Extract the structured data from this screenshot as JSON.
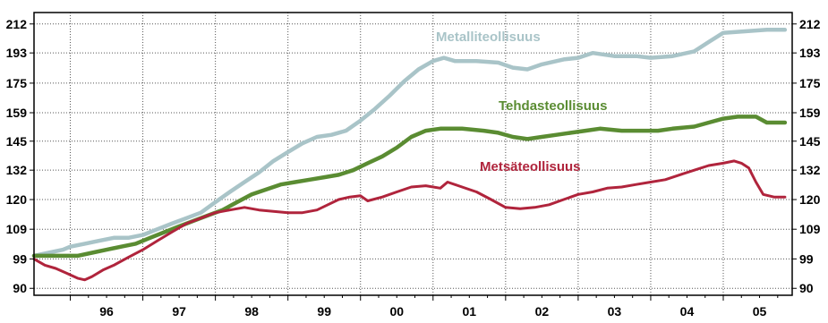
{
  "chart_data": {
    "type": "line",
    "scale": "log",
    "grid": true,
    "ylim": [
      88,
      220
    ],
    "y_ticks": [
      90,
      99,
      109,
      120,
      132,
      145,
      159,
      175,
      193,
      212
    ],
    "x_ticks": [
      "96",
      "97",
      "98",
      "99",
      "00",
      "01",
      "02",
      "03",
      "04",
      "05"
    ],
    "x_start": 1995.5,
    "x_end": 2005.95,
    "series": [
      {
        "name": "Metalliteollisuus",
        "color": "#a9c4c8",
        "stroke_width": 4.5,
        "points": [
          [
            1995.5,
            100
          ],
          [
            1995.7,
            101
          ],
          [
            1995.9,
            102
          ],
          [
            1996.0,
            103
          ],
          [
            1996.2,
            104
          ],
          [
            1996.4,
            105
          ],
          [
            1996.6,
            106
          ],
          [
            1996.8,
            106
          ],
          [
            1997.0,
            107
          ],
          [
            1997.2,
            109
          ],
          [
            1997.4,
            111
          ],
          [
            1997.6,
            113
          ],
          [
            1997.8,
            115
          ],
          [
            1998.0,
            119
          ],
          [
            1998.2,
            123
          ],
          [
            1998.4,
            127
          ],
          [
            1998.6,
            131
          ],
          [
            1998.8,
            136
          ],
          [
            1999.0,
            140
          ],
          [
            1999.2,
            144
          ],
          [
            1999.4,
            147
          ],
          [
            1999.6,
            148
          ],
          [
            1999.8,
            150
          ],
          [
            2000.0,
            155
          ],
          [
            2000.2,
            161
          ],
          [
            2000.4,
            168
          ],
          [
            2000.6,
            176
          ],
          [
            2000.8,
            183
          ],
          [
            2001.0,
            188
          ],
          [
            2001.15,
            190
          ],
          [
            2001.3,
            188
          ],
          [
            2001.6,
            188
          ],
          [
            2001.9,
            187
          ],
          [
            2002.1,
            184
          ],
          [
            2002.3,
            183
          ],
          [
            2002.5,
            186
          ],
          [
            2002.8,
            189
          ],
          [
            2003.0,
            190
          ],
          [
            2003.2,
            193
          ],
          [
            2003.5,
            191
          ],
          [
            2003.8,
            191
          ],
          [
            2004.0,
            190
          ],
          [
            2004.3,
            191
          ],
          [
            2004.6,
            194
          ],
          [
            2004.8,
            200
          ],
          [
            2005.0,
            206
          ],
          [
            2005.3,
            207
          ],
          [
            2005.6,
            208
          ],
          [
            2005.85,
            208
          ]
        ]
      },
      {
        "name": "Tehdasteollisuus",
        "color": "#5a8c32",
        "stroke_width": 4.5,
        "points": [
          [
            1995.5,
            100
          ],
          [
            1995.7,
            100
          ],
          [
            1995.9,
            100
          ],
          [
            1996.1,
            100
          ],
          [
            1996.3,
            101
          ],
          [
            1996.5,
            102
          ],
          [
            1996.7,
            103
          ],
          [
            1996.9,
            104
          ],
          [
            1997.1,
            106
          ],
          [
            1997.3,
            108
          ],
          [
            1997.5,
            110
          ],
          [
            1997.7,
            112
          ],
          [
            1997.9,
            114
          ],
          [
            1998.1,
            116
          ],
          [
            1998.3,
            119
          ],
          [
            1998.5,
            122
          ],
          [
            1998.7,
            124
          ],
          [
            1998.9,
            126
          ],
          [
            1999.1,
            127
          ],
          [
            1999.3,
            128
          ],
          [
            1999.5,
            129
          ],
          [
            1999.7,
            130
          ],
          [
            1999.9,
            132
          ],
          [
            2000.1,
            135
          ],
          [
            2000.3,
            138
          ],
          [
            2000.5,
            142
          ],
          [
            2000.7,
            147
          ],
          [
            2000.9,
            150
          ],
          [
            2001.1,
            151
          ],
          [
            2001.4,
            151
          ],
          [
            2001.7,
            150
          ],
          [
            2001.9,
            149
          ],
          [
            2002.1,
            147
          ],
          [
            2002.3,
            146
          ],
          [
            2002.5,
            147
          ],
          [
            2002.7,
            148
          ],
          [
            2002.9,
            149
          ],
          [
            2003.1,
            150
          ],
          [
            2003.3,
            151
          ],
          [
            2003.6,
            150
          ],
          [
            2003.9,
            150
          ],
          [
            2004.1,
            150
          ],
          [
            2004.3,
            151
          ],
          [
            2004.6,
            152
          ],
          [
            2004.8,
            154
          ],
          [
            2005.0,
            156
          ],
          [
            2005.2,
            157
          ],
          [
            2005.45,
            157
          ],
          [
            2005.6,
            154
          ],
          [
            2005.85,
            154
          ]
        ]
      },
      {
        "name": "Metsäteollisuus",
        "color": "#b0243c",
        "stroke_width": 3,
        "points": [
          [
            1995.5,
            99
          ],
          [
            1995.65,
            97
          ],
          [
            1995.8,
            96
          ],
          [
            1995.95,
            94.5
          ],
          [
            1996.1,
            93
          ],
          [
            1996.2,
            92.5
          ],
          [
            1996.3,
            93.5
          ],
          [
            1996.45,
            95.5
          ],
          [
            1996.6,
            97
          ],
          [
            1996.8,
            99.5
          ],
          [
            1997.0,
            102
          ],
          [
            1997.2,
            105
          ],
          [
            1997.4,
            108
          ],
          [
            1997.6,
            111
          ],
          [
            1997.8,
            113
          ],
          [
            1998.0,
            115
          ],
          [
            1998.2,
            116
          ],
          [
            1998.4,
            117
          ],
          [
            1998.6,
            116
          ],
          [
            1998.8,
            115.5
          ],
          [
            1999.0,
            115
          ],
          [
            1999.2,
            115
          ],
          [
            1999.4,
            116
          ],
          [
            1999.55,
            118
          ],
          [
            1999.7,
            120
          ],
          [
            1999.85,
            121
          ],
          [
            2000.0,
            121.5
          ],
          [
            2000.1,
            119.5
          ],
          [
            2000.3,
            121
          ],
          [
            2000.5,
            123
          ],
          [
            2000.7,
            125
          ],
          [
            2000.9,
            125.5
          ],
          [
            2001.1,
            124.5
          ],
          [
            2001.2,
            127
          ],
          [
            2001.4,
            125
          ],
          [
            2001.6,
            123
          ],
          [
            2001.8,
            120
          ],
          [
            2002.0,
            117
          ],
          [
            2002.2,
            116.5
          ],
          [
            2002.4,
            117
          ],
          [
            2002.6,
            118
          ],
          [
            2002.8,
            120
          ],
          [
            2003.0,
            122
          ],
          [
            2003.2,
            123
          ],
          [
            2003.4,
            124.5
          ],
          [
            2003.6,
            125
          ],
          [
            2003.8,
            126
          ],
          [
            2004.0,
            127
          ],
          [
            2004.2,
            128
          ],
          [
            2004.4,
            130
          ],
          [
            2004.6,
            132
          ],
          [
            2004.8,
            134
          ],
          [
            2005.0,
            135
          ],
          [
            2005.15,
            136
          ],
          [
            2005.25,
            135
          ],
          [
            2005.35,
            133
          ],
          [
            2005.45,
            127
          ],
          [
            2005.55,
            122
          ],
          [
            2005.7,
            121
          ],
          [
            2005.85,
            121
          ]
        ]
      }
    ]
  },
  "labels": {
    "metalli": "Metalliteollisuus",
    "tehdas": "Tehdasteollisuus",
    "metsa": "Metsäteollisuus"
  }
}
